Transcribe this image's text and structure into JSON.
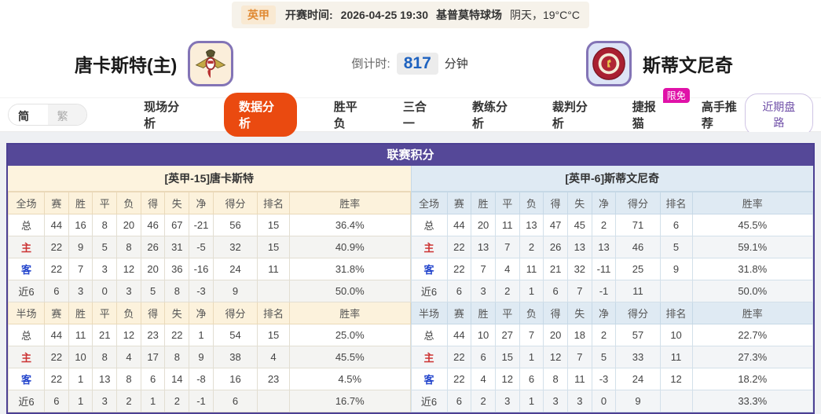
{
  "match_bar": {
    "league": "英甲",
    "time_label": "开赛时间:",
    "time": "2026-04-25 19:30",
    "venue": "基普莫特球场",
    "weather": "阴天，19°C°C"
  },
  "header": {
    "home_name": "唐卡斯特(主)",
    "away_name": "斯蒂文尼奇",
    "countdown_label": "倒计时:",
    "countdown_value": "817",
    "countdown_unit": "分钟"
  },
  "nav": {
    "lang": {
      "simplified": "简体",
      "traditional": "繁体"
    },
    "tabs": [
      {
        "label": "现场分析"
      },
      {
        "label": "数据分析"
      },
      {
        "label": "胜平负"
      },
      {
        "label": "三合一"
      },
      {
        "label": "教练分析"
      },
      {
        "label": "裁判分析"
      },
      {
        "label": "捷报猫",
        "badge": "限免"
      },
      {
        "label": "高手推荐"
      }
    ],
    "recent_button": "近期盘路"
  },
  "score_table": {
    "title": "联赛积分",
    "columns": [
      "赛",
      "胜",
      "平",
      "负",
      "得",
      "失",
      "净",
      "得分",
      "排名",
      "胜率"
    ],
    "left": {
      "team_header": "[英甲-15]唐卡斯特",
      "full": {
        "header_label": "全场",
        "rows": [
          {
            "label": "总",
            "label_color": "",
            "cells": [
              "44",
              "16",
              "8",
              "20",
              "46",
              "67",
              "-21",
              "56",
              "15",
              "36.4%"
            ]
          },
          {
            "label": "主",
            "label_color": "red",
            "cells": [
              "22",
              "9",
              "5",
              "8",
              "26",
              "31",
              "-5",
              "32",
              "15",
              "40.9%"
            ]
          },
          {
            "label": "客",
            "label_color": "blue",
            "cells": [
              "22",
              "7",
              "3",
              "12",
              "20",
              "36",
              "-16",
              "24",
              "11",
              "31.8%"
            ]
          },
          {
            "label": "近6",
            "label_color": "",
            "cells": [
              "6",
              "3",
              "0",
              "3",
              "5",
              "8",
              "-3",
              "9",
              "",
              "50.0%"
            ]
          }
        ]
      },
      "half": {
        "header_label": "半场",
        "rows": [
          {
            "label": "总",
            "label_color": "",
            "cells": [
              "44",
              "11",
              "21",
              "12",
              "23",
              "22",
              "1",
              "54",
              "15",
              "25.0%"
            ]
          },
          {
            "label": "主",
            "label_color": "red",
            "cells": [
              "22",
              "10",
              "8",
              "4",
              "17",
              "8",
              "9",
              "38",
              "4",
              "45.5%"
            ]
          },
          {
            "label": "客",
            "label_color": "blue",
            "cells": [
              "22",
              "1",
              "13",
              "8",
              "6",
              "14",
              "-8",
              "16",
              "23",
              "4.5%"
            ]
          },
          {
            "label": "近6",
            "label_color": "",
            "cells": [
              "6",
              "1",
              "3",
              "2",
              "1",
              "2",
              "-1",
              "6",
              "",
              "16.7%"
            ]
          }
        ]
      }
    },
    "right": {
      "team_header": "[英甲-6]斯蒂文尼奇",
      "full": {
        "header_label": "全场",
        "rows": [
          {
            "label": "总",
            "label_color": "",
            "cells": [
              "44",
              "20",
              "11",
              "13",
              "47",
              "45",
              "2",
              "71",
              "6",
              "45.5%"
            ]
          },
          {
            "label": "主",
            "label_color": "red",
            "cells": [
              "22",
              "13",
              "7",
              "2",
              "26",
              "13",
              "13",
              "46",
              "5",
              "59.1%"
            ]
          },
          {
            "label": "客",
            "label_color": "blue",
            "cells": [
              "22",
              "7",
              "4",
              "11",
              "21",
              "32",
              "-11",
              "25",
              "9",
              "31.8%"
            ]
          },
          {
            "label": "近6",
            "label_color": "",
            "cells": [
              "6",
              "3",
              "2",
              "1",
              "6",
              "7",
              "-1",
              "11",
              "",
              "50.0%"
            ]
          }
        ]
      },
      "half": {
        "header_label": "半场",
        "rows": [
          {
            "label": "总",
            "label_color": "",
            "cells": [
              "44",
              "10",
              "27",
              "7",
              "20",
              "18",
              "2",
              "57",
              "10",
              "22.7%"
            ]
          },
          {
            "label": "主",
            "label_color": "red",
            "cells": [
              "22",
              "6",
              "15",
              "1",
              "12",
              "7",
              "5",
              "33",
              "11",
              "27.3%"
            ]
          },
          {
            "label": "客",
            "label_color": "blue",
            "cells": [
              "22",
              "4",
              "12",
              "6",
              "8",
              "11",
              "-3",
              "24",
              "12",
              "18.2%"
            ]
          },
          {
            "label": "近6",
            "label_color": "",
            "cells": [
              "6",
              "2",
              "3",
              "1",
              "3",
              "3",
              "0",
              "9",
              "",
              "33.3%"
            ]
          }
        ]
      }
    }
  },
  "icons": {
    "home_logo": "doncaster-crest",
    "away_logo": "stevenage-crest"
  },
  "colors": {
    "accent_orange": "#ea4a10",
    "title_purple": "#554898",
    "badge_pink": "#e012a8",
    "countdown_blue": "#1f63c0",
    "home_panel_cream": "#fdf3de",
    "away_panel_blue": "#dfeaf3"
  }
}
